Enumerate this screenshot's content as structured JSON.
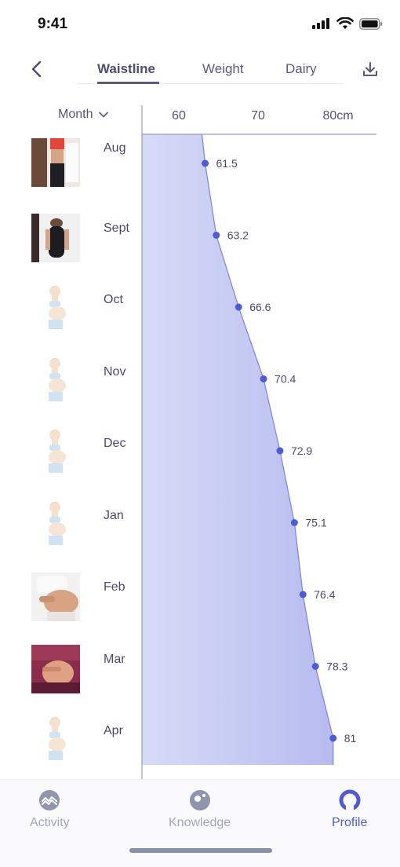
{
  "status": {
    "time": "9:41"
  },
  "tabs": [
    {
      "label": "Waistline",
      "active": true
    },
    {
      "label": "Weight",
      "active": false
    },
    {
      "label": "Dairy",
      "active": false
    }
  ],
  "month_selector": {
    "label": "Month"
  },
  "chart_data": {
    "type": "area",
    "orientation": "horizontal",
    "x_ticks": [
      "60",
      "70",
      "80cm"
    ],
    "xlim": [
      52,
      87
    ],
    "categories": [
      "Aug",
      "Sept",
      "Oct",
      "Nov",
      "Dec",
      "Jan",
      "Feb",
      "Mar",
      "Apr"
    ],
    "values": [
      61.5,
      63.2,
      66.6,
      70.4,
      72.9,
      75.1,
      76.4,
      78.3,
      81
    ],
    "value_labels": [
      "61.5",
      "63.2",
      "66.6",
      "70.4",
      "72.9",
      "75.1",
      "76.4",
      "78.3",
      "81"
    ],
    "colors": {
      "fill_start": "#d4d9f6",
      "fill_end": "#b9bdf0",
      "line": "#7b83de",
      "dot": "#4e5bd6",
      "axis": "#9a9cb8"
    }
  },
  "thumbnails": [
    "photo-torso-red-top",
    "photo-belly-black-top",
    "illustration-pregnant",
    "illustration-pregnant",
    "illustration-pregnant",
    "illustration-pregnant",
    "photo-belly-white-top",
    "photo-belly-pink-top",
    "illustration-pregnant"
  ],
  "bottom_tabs": [
    {
      "label": "Activity",
      "icon": "activity-icon",
      "active": false
    },
    {
      "label": "Knowledge",
      "icon": "knowledge-icon",
      "active": false
    },
    {
      "label": "Profile",
      "icon": "profile-icon",
      "active": true
    }
  ]
}
